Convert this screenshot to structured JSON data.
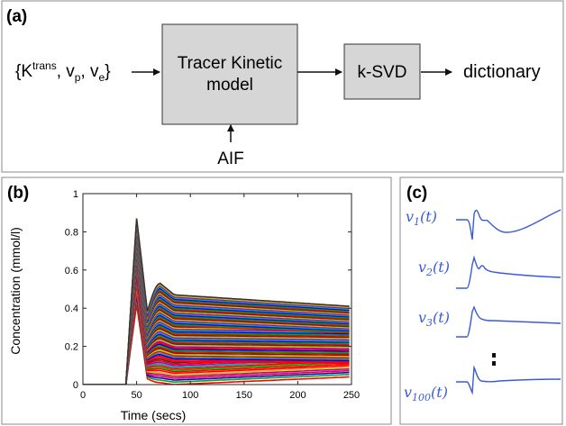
{
  "panel_a": {
    "label": "(a)",
    "input_open": "{K",
    "input_sup": "trans",
    "input_mid1": ", v",
    "input_sub_p": "p",
    "input_mid2": ", v",
    "input_sub_e": "e",
    "input_close": "}",
    "box1_line1": "Tracer Kinetic",
    "box1_line2": "model",
    "box2": "k-SVD",
    "output": "dictionary",
    "aif": "AIF"
  },
  "panel_b": {
    "label": "(b)"
  },
  "panel_c": {
    "label": "(c)",
    "curves": [
      {
        "label_main": "v",
        "label_sub": "1",
        "label_tail": "(t)"
      },
      {
        "label_main": "v",
        "label_sub": "2",
        "label_tail": "(t)"
      },
      {
        "label_main": "v",
        "label_sub": "3",
        "label_tail": "(t)"
      },
      {
        "label_main": "v",
        "label_sub": "100",
        "label_tail": "(t)"
      }
    ],
    "curve_color": "#3a5bd9"
  },
  "chart_data": {
    "type": "line",
    "xlabel": "Time (secs)",
    "ylabel": "Concentration (mmol/l)",
    "xlim": [
      0,
      250
    ],
    "ylim": [
      0,
      1
    ],
    "xticks": [
      "0",
      "50",
      "100",
      "150",
      "200",
      "250"
    ],
    "yticks": [
      "0",
      "0.2",
      "0.4",
      "0.6",
      "0.8",
      "1"
    ],
    "grid": false,
    "description_series": "dense family of concentration curves: zero baseline until ~40 s, sharp first-pass peak at ~50 s (up to ~0.87), recirculation bump at ~72 s, then slowly varying plateau levels from ~0 to ~0.47",
    "peak_time": 50,
    "peak_max": 0.87,
    "second_peak_time": 72,
    "plateau_max": 0.47,
    "onset_time": 40,
    "series_colors": [
      "#ff0000",
      "#00aa00",
      "#0000ff",
      "#00b0b0",
      "#b000b0",
      "#c8c800",
      "#333333"
    ]
  }
}
